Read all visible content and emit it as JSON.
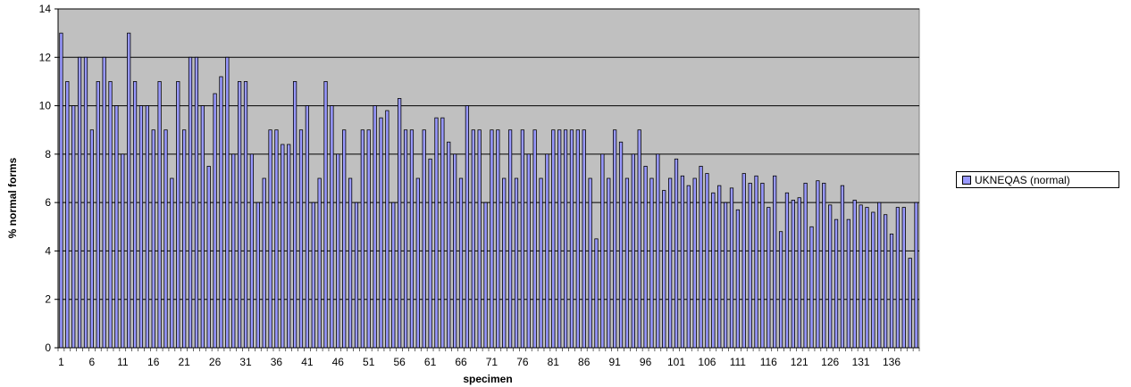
{
  "colors": {
    "plot_bg": "#c0c0c0",
    "bar_fill": "#9999ff",
    "bar_stroke": "#000000",
    "grid": "#000000"
  },
  "chart_data": {
    "type": "bar",
    "title": "",
    "xlabel": "specimen",
    "ylabel": "% normal forms",
    "ylim": [
      0,
      14
    ],
    "yticks": [
      0,
      2,
      4,
      6,
      8,
      10,
      12,
      14
    ],
    "xtick_labels": [
      "1",
      "6",
      "11",
      "16",
      "21",
      "26",
      "31",
      "36",
      "41",
      "46",
      "51",
      "56",
      "61",
      "66",
      "71",
      "76",
      "81",
      "86",
      "91",
      "96",
      "101",
      "106",
      "111",
      "116",
      "121",
      "126",
      "131",
      "136"
    ],
    "grid": "horizontal",
    "legend_position": "right",
    "series": [
      {
        "name": "UKNEQAS (normal)",
        "values": [
          13,
          11,
          10,
          12,
          12,
          9,
          11,
          12,
          11,
          10,
          8,
          13,
          11,
          10,
          10,
          9,
          11,
          9,
          7,
          11,
          9,
          12,
          12,
          10,
          7.5,
          10.5,
          11.2,
          12,
          8,
          11,
          11,
          8,
          6,
          7,
          9,
          9,
          8.4,
          8.4,
          11,
          9,
          10,
          6,
          7,
          11,
          10,
          8,
          9,
          7,
          6,
          9,
          9,
          10,
          9.5,
          9.8,
          6,
          10.3,
          9,
          9,
          7,
          9,
          7.8,
          9.5,
          9.5,
          8.5,
          8,
          7,
          10,
          9,
          9,
          6,
          9,
          9,
          7,
          9,
          7,
          9,
          8,
          9,
          7,
          8,
          9,
          9,
          9,
          9,
          9,
          9,
          7,
          4.5,
          8,
          7,
          9,
          8.5,
          7,
          8,
          9,
          7.5,
          7,
          8,
          6.5,
          7,
          7.8,
          7.1,
          6.7,
          7,
          7.5,
          7.2,
          6.4,
          6.7,
          6,
          6.6,
          5.7,
          7.2,
          6.8,
          7.1,
          6.8,
          5.8,
          7.1,
          4.8,
          6.4,
          6.1,
          6.2,
          6.8,
          5,
          6.9,
          6.8,
          5.9,
          5.3,
          6.7,
          5.3,
          6.1,
          5.9,
          5.8,
          5.6,
          6,
          5.5,
          4.7,
          5.8,
          5.8,
          3.7,
          6
        ]
      }
    ]
  }
}
